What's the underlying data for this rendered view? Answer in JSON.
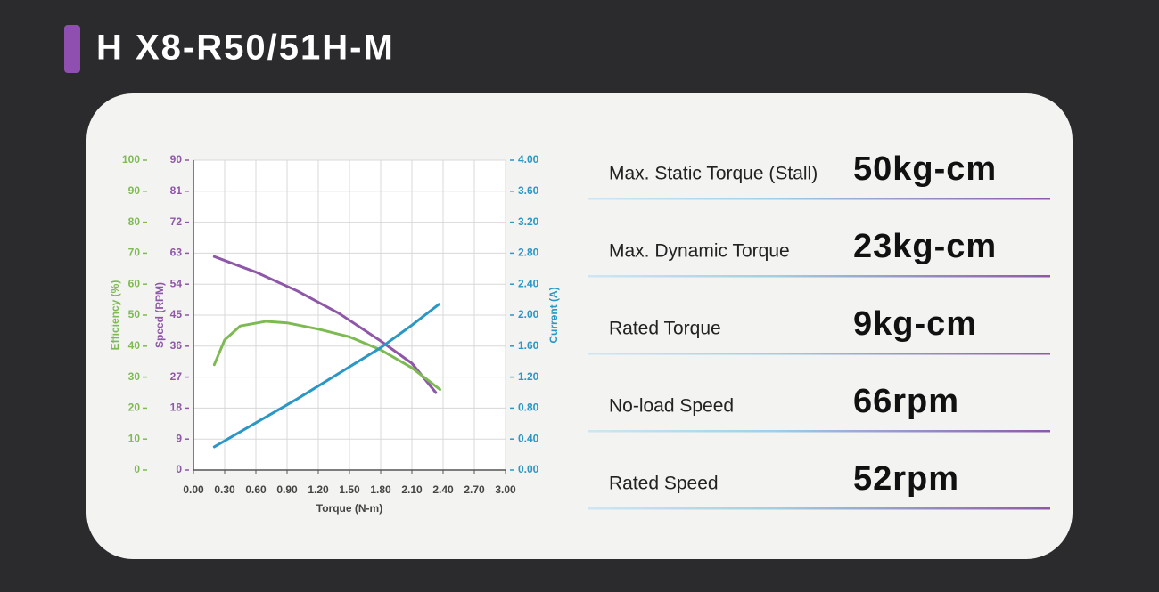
{
  "header": {
    "title": "H X8-R50/51H-M"
  },
  "chart_data": {
    "type": "line",
    "xlabel": "Torque (N-m)",
    "ylabel": "Efficiency (%)",
    "y3label": "Speed (RPM)",
    "y2label": "Current (A)",
    "xlim": [
      0,
      3
    ],
    "xticks": [
      {
        "value": 0,
        "label": "0.00"
      },
      {
        "value": 0.3,
        "label": "0.30"
      },
      {
        "value": 0.6,
        "label": "0.60"
      },
      {
        "value": 0.9,
        "label": "0.90"
      },
      {
        "value": 1.2,
        "label": "1.20"
      },
      {
        "value": 1.5,
        "label": "1.50"
      },
      {
        "value": 1.8,
        "label": "1.80"
      },
      {
        "value": 2.1,
        "label": "2.10"
      },
      {
        "value": 2.4,
        "label": "2.40"
      },
      {
        "value": 2.7,
        "label": "2.70"
      },
      {
        "value": 3,
        "label": "3.00"
      }
    ],
    "ylim": [
      0,
      100
    ],
    "yticks": [
      0,
      10,
      20,
      30,
      40,
      50,
      60,
      70,
      80,
      90,
      100
    ],
    "ycolor": "#7dbb52",
    "y3lim": [
      0,
      90
    ],
    "y3ticks": [
      0,
      9,
      18,
      27,
      36,
      45,
      54,
      63,
      72,
      81,
      90
    ],
    "y3color": "#8e57a8",
    "y2lim": [
      0,
      4
    ],
    "y2ticks": [
      {
        "value": 0,
        "label": "0.00"
      },
      {
        "value": 0.4,
        "label": "0.40"
      },
      {
        "value": 0.8,
        "label": "0.80"
      },
      {
        "value": 1.2,
        "label": "1.20"
      },
      {
        "value": 1.6,
        "label": "1.60"
      },
      {
        "value": 2,
        "label": "2.00"
      },
      {
        "value": 2.4,
        "label": "2.40"
      },
      {
        "value": 2.8,
        "label": "2.80"
      },
      {
        "value": 3.2,
        "label": "3.20"
      },
      {
        "value": 3.6,
        "label": "3.60"
      },
      {
        "value": 4,
        "label": "4.00"
      }
    ],
    "y2color": "#2a97c4",
    "grid": true,
    "series": [
      {
        "axis": "y3",
        "color": "#8e57a8",
        "x": [
          0.2,
          0.6,
          1.0,
          1.4,
          1.8,
          2.1,
          2.33
        ],
        "values": [
          62,
          57.5,
          52,
          45.5,
          37.5,
          31,
          22.5
        ]
      },
      {
        "axis": "y",
        "color": "#7dbb52",
        "x": [
          0.2,
          0.3,
          0.45,
          0.7,
          0.9,
          1.2,
          1.5,
          1.8,
          2.1,
          2.37
        ],
        "values": [
          34,
          42,
          46.5,
          48,
          47.5,
          45.5,
          43,
          38.8,
          33,
          26
        ]
      },
      {
        "axis": "y2",
        "color": "#2a97c4",
        "x": [
          0.2,
          1.0,
          1.8,
          2.1,
          2.36
        ],
        "values": [
          0.3,
          0.92,
          1.58,
          1.87,
          2.14
        ]
      }
    ]
  },
  "specs": [
    {
      "label": "Max. Static Torque (Stall)",
      "value": "50kg-cm"
    },
    {
      "label": "Max. Dynamic Torque",
      "value": "23kg-cm"
    },
    {
      "label": "Rated Torque",
      "value": "9kg-cm"
    },
    {
      "label": "No-load Speed",
      "value": "66rpm"
    },
    {
      "label": "Rated Speed",
      "value": "52rpm"
    }
  ]
}
